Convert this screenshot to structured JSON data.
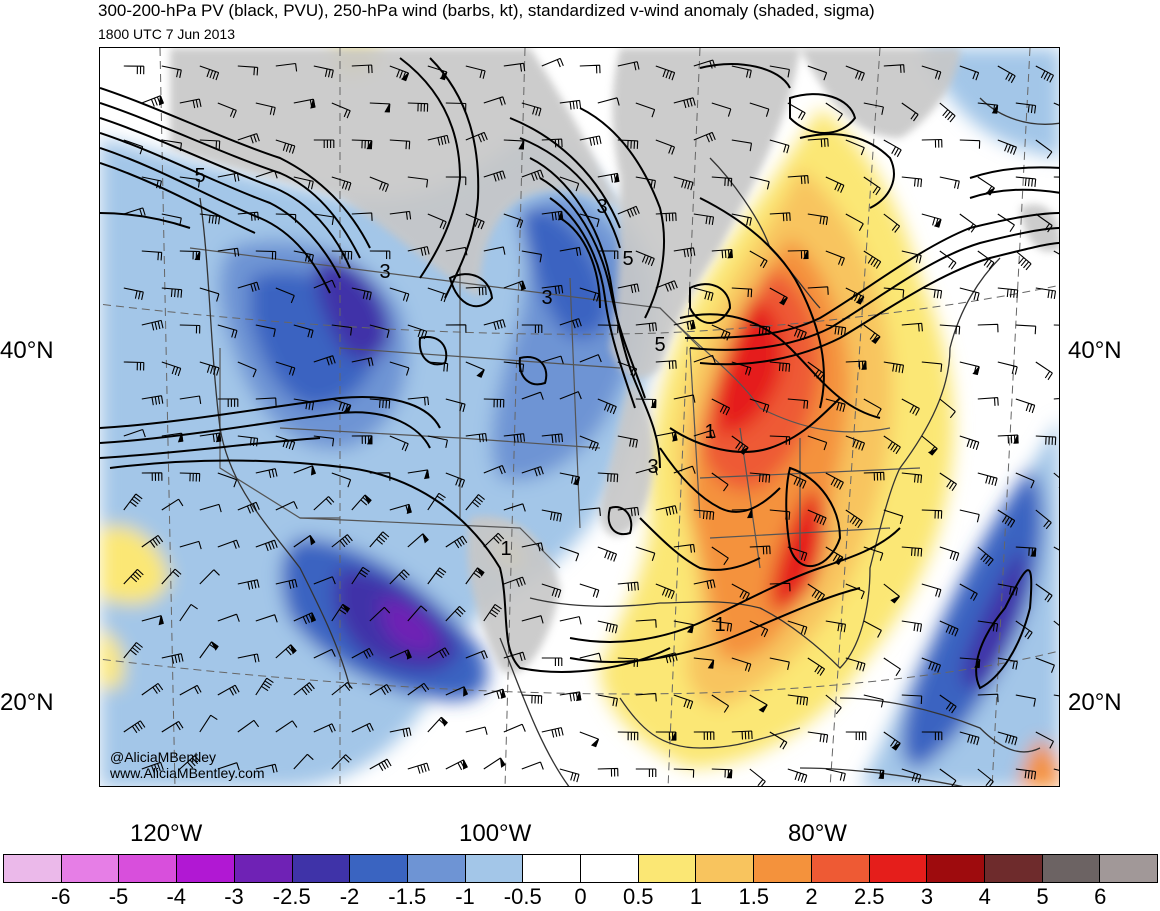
{
  "title": "300-200-hPa PV (black, PVU), 250-hPa wind (barbs, kt), standardized v-wind anomaly (shaded, sigma)",
  "subtitle": "1800 UTC 7 Jun 2013",
  "credit": {
    "handle": "@AliciaMBentley",
    "website": "www.AliciaMBentley.com"
  },
  "latitude_labels": {
    "north_40": "40°N",
    "north_20": "20°N"
  },
  "longitude_labels": {
    "west_120": "120°W",
    "west_100": "100°W",
    "west_80": "80°W"
  },
  "pv_contour_labels": [
    "5",
    "3",
    "3",
    "3",
    "5",
    "5",
    "3",
    "1",
    "1",
    "1"
  ],
  "colorbar": {
    "colors": [
      "#ebb9ea",
      "#e67ee6",
      "#d84fdc",
      "#b118d3",
      "#6f22b5",
      "#3f33a8",
      "#3a64c1",
      "#6e94d4",
      "#a3c6e8",
      "#ffffff",
      "#ffffff",
      "#fbe774",
      "#f8c45e",
      "#f4923c",
      "#ee5a34",
      "#e51e1b",
      "#9e0b0d",
      "#6e2b2c",
      "#6c6363",
      "#a19898"
    ],
    "labels": [
      "-6",
      "-5",
      "-4",
      "-3",
      "-2.5",
      "-2",
      "-1.5",
      "-1",
      "-0.5",
      "0",
      "0.5",
      "1",
      "1.5",
      "2",
      "2.5",
      "3",
      "4",
      "5",
      "6"
    ]
  }
}
